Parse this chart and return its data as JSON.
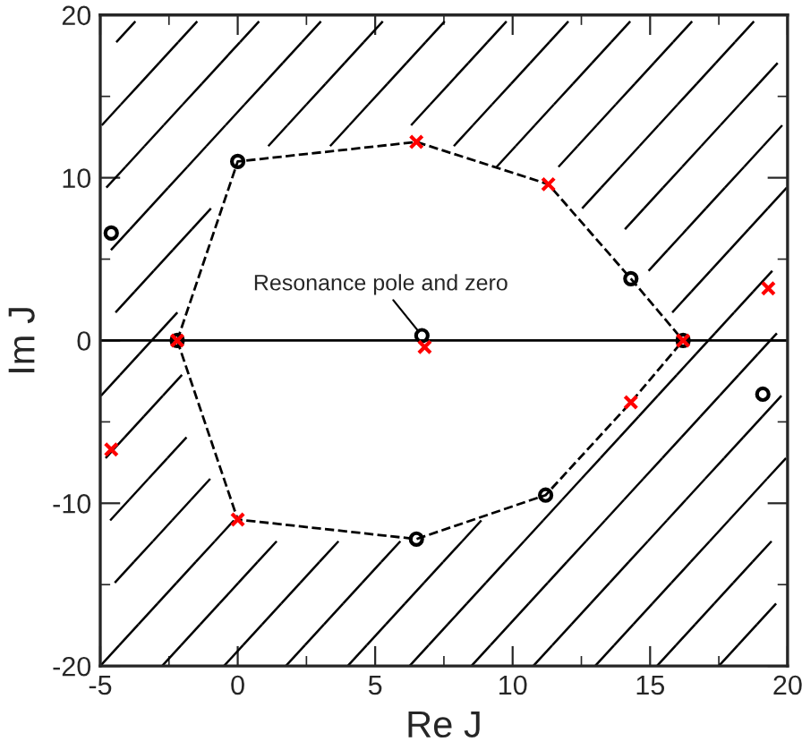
{
  "chart_data": {
    "type": "scatter",
    "xlabel": "Re J",
    "ylabel": "Im J",
    "xlim": [
      -5,
      20
    ],
    "xticks": [
      -5,
      0,
      5,
      10,
      15,
      20
    ],
    "ylim": [
      -20,
      20
    ],
    "yticks": [
      -20,
      -10,
      0,
      10,
      20
    ],
    "grid": false,
    "legend": false,
    "series": [
      {
        "type": "line",
        "line_style": "dashed",
        "marker": "none",
        "color": "#000000",
        "x": [
          -2.2,
          0,
          6.5,
          11.3,
          14.3,
          16.2
        ],
        "values": [
          0,
          11.0,
          12.2,
          9.6,
          3.8,
          0
        ]
      },
      {
        "type": "line",
        "line_style": "dashed",
        "marker": "none",
        "color": "#000000",
        "x": [
          -2.2,
          0,
          6.5,
          11.2,
          14.3,
          16.2
        ],
        "values": [
          0,
          -11.0,
          -12.2,
          -9.5,
          -3.8,
          0
        ]
      },
      {
        "type": "scatter",
        "marker": "circle",
        "color": "#000000",
        "x": [
          -4.6,
          0,
          6.7,
          14.3,
          16.2,
          19.1,
          11.2,
          6.5,
          -2.2
        ],
        "values": [
          6.6,
          11.0,
          0.3,
          3.8,
          0,
          -3.3,
          -9.5,
          -12.2,
          0
        ]
      },
      {
        "type": "scatter",
        "marker": "cross",
        "color": "#ff0000",
        "x": [
          6.5,
          11.3,
          19.3,
          16.2,
          14.3,
          6.8,
          0,
          -4.6,
          -2.2
        ],
        "values": [
          12.2,
          9.6,
          3.2,
          0,
          -3.8,
          -0.4,
          -11.0,
          -6.7,
          0
        ]
      }
    ],
    "ref_lines": [
      {
        "axis": "y",
        "value": 0,
        "color": "#000000",
        "line_style": "solid"
      }
    ],
    "annotations": [
      {
        "text": "Resonance pole and zero",
        "x": 6.7,
        "y": 0.3
      }
    ]
  }
}
